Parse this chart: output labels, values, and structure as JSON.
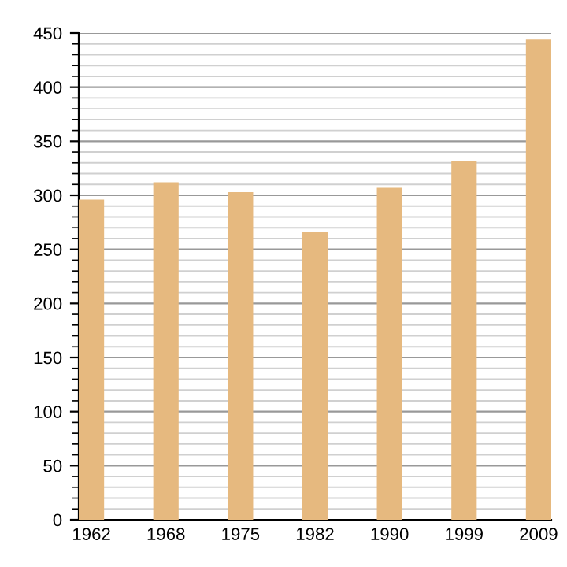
{
  "chart_data": {
    "type": "bar",
    "categories": [
      "1962",
      "1968",
      "1975",
      "1982",
      "1990",
      "1999",
      "2009"
    ],
    "values": [
      296,
      312,
      303,
      266,
      307,
      332,
      444
    ],
    "color": "#e6b97f",
    "ylim": [
      0,
      450
    ],
    "yticks": [
      0,
      50,
      100,
      150,
      200,
      250,
      300,
      350,
      400,
      450
    ],
    "grid": "y"
  }
}
